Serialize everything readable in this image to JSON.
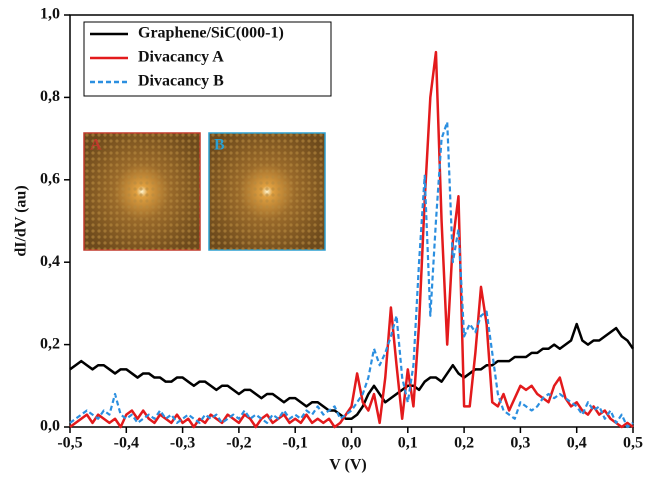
{
  "chart_data": {
    "type": "line",
    "xlabel": "V (V)",
    "ylabel": "dI/dV (au)",
    "xlim": [
      -0.5,
      0.5
    ],
    "ylim": [
      0,
      1.0
    ],
    "xticks": [
      {
        "value": -0.5,
        "label": "-0,5"
      },
      {
        "value": -0.4,
        "label": "-0,4"
      },
      {
        "value": -0.3,
        "label": "-0,3"
      },
      {
        "value": -0.2,
        "label": "-0,2"
      },
      {
        "value": -0.1,
        "label": "-0,1"
      },
      {
        "value": 0,
        "label": "0,0"
      },
      {
        "value": 0.1,
        "label": "0,1"
      },
      {
        "value": 0.2,
        "label": "0,2"
      },
      {
        "value": 0.3,
        "label": "0,3"
      },
      {
        "value": 0.4,
        "label": "0,4"
      },
      {
        "value": 0.5,
        "label": "0,5"
      }
    ],
    "yticks": [
      {
        "value": 0,
        "label": "0,0"
      },
      {
        "value": 0.2,
        "label": "0,2"
      },
      {
        "value": 0.4,
        "label": "0,4"
      },
      {
        "value": 0.6,
        "label": "0,6"
      },
      {
        "value": 0.8,
        "label": "0,8"
      },
      {
        "value": 1.0,
        "label": "1,0"
      }
    ],
    "legend": "upper left",
    "annotations": [
      "A",
      "B"
    ],
    "x": [
      -0.5,
      -0.49,
      -0.48,
      -0.47,
      -0.46,
      -0.45,
      -0.44,
      -0.43,
      -0.42,
      -0.41,
      -0.4,
      -0.39,
      -0.38,
      -0.37,
      -0.36,
      -0.35,
      -0.34,
      -0.33,
      -0.32,
      -0.31,
      -0.3,
      -0.29,
      -0.28,
      -0.27,
      -0.26,
      -0.25,
      -0.24,
      -0.23,
      -0.22,
      -0.21,
      -0.2,
      -0.19,
      -0.18,
      -0.17,
      -0.16,
      -0.15,
      -0.14,
      -0.13,
      -0.12,
      -0.11,
      -0.1,
      -0.09,
      -0.08,
      -0.07,
      -0.06,
      -0.05,
      -0.04,
      -0.03,
      -0.02,
      -0.01,
      0,
      0.01,
      0.02,
      0.03,
      0.04,
      0.05,
      0.06,
      0.07,
      0.08,
      0.09,
      0.1,
      0.11,
      0.12,
      0.13,
      0.14,
      0.15,
      0.16,
      0.17,
      0.18,
      0.19,
      0.2,
      0.21,
      0.22,
      0.23,
      0.24,
      0.25,
      0.26,
      0.27,
      0.28,
      0.29,
      0.3,
      0.31,
      0.32,
      0.33,
      0.34,
      0.35,
      0.36,
      0.37,
      0.38,
      0.39,
      0.4,
      0.41,
      0.42,
      0.43,
      0.44,
      0.45,
      0.46,
      0.47,
      0.48,
      0.49,
      0.5
    ],
    "series": [
      {
        "name": "Graphene/SiC(000-1)",
        "color": "#000000",
        "dash": false,
        "values": [
          0.14,
          0.15,
          0.16,
          0.15,
          0.14,
          0.15,
          0.15,
          0.14,
          0.13,
          0.14,
          0.14,
          0.13,
          0.12,
          0.13,
          0.13,
          0.12,
          0.12,
          0.11,
          0.11,
          0.12,
          0.12,
          0.11,
          0.1,
          0.11,
          0.11,
          0.1,
          0.09,
          0.1,
          0.1,
          0.09,
          0.08,
          0.09,
          0.09,
          0.08,
          0.07,
          0.08,
          0.08,
          0.07,
          0.06,
          0.07,
          0.07,
          0.06,
          0.05,
          0.06,
          0.06,
          0.05,
          0.04,
          0.04,
          0.03,
          0.02,
          0.02,
          0.03,
          0.05,
          0.08,
          0.1,
          0.08,
          0.06,
          0.07,
          0.08,
          0.09,
          0.1,
          0.1,
          0.09,
          0.11,
          0.12,
          0.12,
          0.11,
          0.13,
          0.15,
          0.13,
          0.12,
          0.13,
          0.14,
          0.14,
          0.15,
          0.15,
          0.16,
          0.16,
          0.16,
          0.17,
          0.17,
          0.17,
          0.18,
          0.18,
          0.19,
          0.19,
          0.2,
          0.19,
          0.2,
          0.21,
          0.25,
          0.21,
          0.2,
          0.21,
          0.21,
          0.22,
          0.23,
          0.24,
          0.22,
          0.21,
          0.19
        ]
      },
      {
        "name": "Divacancy A",
        "color": "#e31a1c",
        "dash": false,
        "values": [
          0,
          0.01,
          0.02,
          0.03,
          0.01,
          0.03,
          0.02,
          0.01,
          0.02,
          0,
          0.03,
          0.04,
          0.02,
          0.04,
          0.02,
          0.01,
          0.03,
          0.02,
          0.01,
          0.03,
          0.01,
          0.02,
          0,
          0.02,
          0.01,
          0.03,
          0.02,
          0.01,
          0.03,
          0.02,
          0.01,
          0.03,
          0.02,
          0,
          0.02,
          0.03,
          0.01,
          0.02,
          0.03,
          0.01,
          0.02,
          0.01,
          0.03,
          0.01,
          0.02,
          0.01,
          0.02,
          0,
          0.01,
          0.03,
          0.05,
          0.13,
          0.06,
          0.04,
          0.08,
          0.01,
          0.12,
          0.29,
          0.15,
          0.02,
          0.14,
          0.05,
          0.25,
          0.55,
          0.8,
          0.91,
          0.5,
          0.2,
          0.45,
          0.56,
          0.05,
          0.05,
          0.18,
          0.34,
          0.25,
          0.06,
          0.05,
          0.08,
          0.04,
          0.07,
          0.1,
          0.09,
          0.1,
          0.08,
          0.07,
          0.06,
          0.1,
          0.12,
          0.07,
          0.05,
          0.06,
          0.04,
          0.03,
          0.05,
          0.03,
          0.04,
          0.02,
          0.01,
          0,
          0.01,
          0
        ]
      },
      {
        "name": "Divacancy B",
        "color": "#2b8fe0",
        "dash": true,
        "values": [
          0.01,
          0.02,
          0.03,
          0.04,
          0.03,
          0.02,
          0.04,
          0.03,
          0.08,
          0.03,
          0.02,
          0.03,
          0.01,
          0.02,
          0.03,
          0.02,
          0.04,
          0.02,
          0.03,
          0.01,
          0.02,
          0.03,
          0.02,
          0.01,
          0.03,
          0.02,
          0.03,
          0.01,
          0.02,
          0.03,
          0.02,
          0.04,
          0.02,
          0.03,
          0.02,
          0.01,
          0.03,
          0.02,
          0.04,
          0.02,
          0.03,
          0.02,
          0.04,
          0.03,
          0.05,
          0.03,
          0.04,
          0.05,
          0.02,
          0.03,
          0.04,
          0.06,
          0.08,
          0.12,
          0.19,
          0.15,
          0.18,
          0.22,
          0.27,
          0.12,
          0.06,
          0.15,
          0.4,
          0.61,
          0.27,
          0.5,
          0.7,
          0.74,
          0.4,
          0.48,
          0.22,
          0.25,
          0.23,
          0.27,
          0.28,
          0.18,
          0.08,
          0.04,
          0.03,
          0.02,
          0.06,
          0.05,
          0.04,
          0.05,
          0.07,
          0.08,
          0.07,
          0.08,
          0.07,
          0.06,
          0.05,
          0.03,
          0.06,
          0.04,
          0.05,
          0.02,
          0.04,
          0.01,
          0.03,
          0,
          0.01
        ]
      }
    ]
  }
}
